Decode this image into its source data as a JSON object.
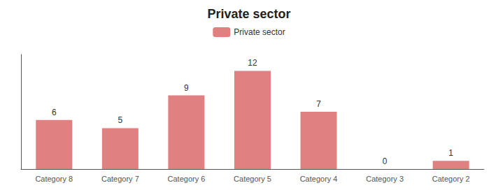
{
  "chart_data": {
    "type": "bar",
    "title": "Private sector",
    "categories": [
      "Category 8",
      "Category 7",
      "Category 6",
      "Category 5",
      "Category 4",
      "Category 3",
      "Category 2"
    ],
    "series": [
      {
        "name": "Private sector",
        "color": "#E08080",
        "values": [
          6,
          5,
          9,
          12,
          7,
          0,
          1
        ]
      }
    ],
    "ylim": [
      0,
      14
    ],
    "grid": false,
    "legend": "top",
    "data_labels": true,
    "tick_labels": "x"
  }
}
